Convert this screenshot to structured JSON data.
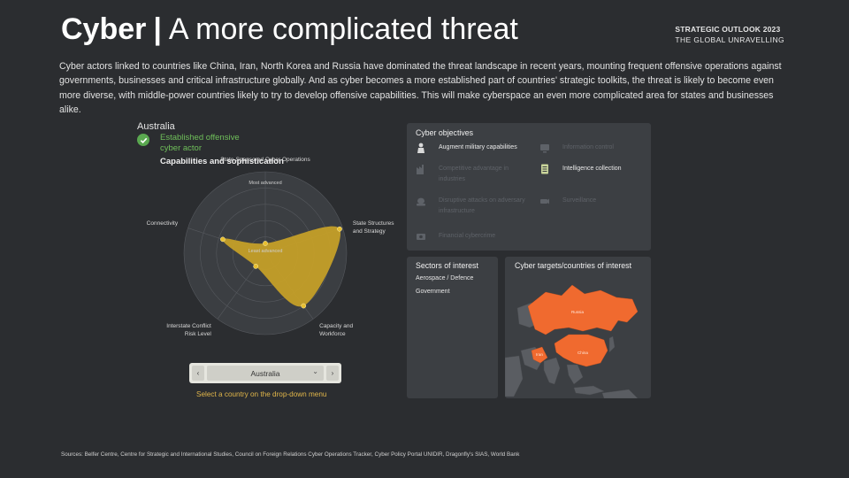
{
  "header": {
    "title_bold": "Cyber",
    "title_sep": "|",
    "title_rest": "A more complicated threat",
    "brand_line1": "STRATEGIC OUTLOOK 2023",
    "brand_line2": "THE GLOBAL UNRAVELLING"
  },
  "intro": "Cyber actors linked to countries like China, Iran, North Korea and Russia have dominated the threat landscape in recent years, mounting frequent offensive operations against governments, businesses and critical infrastructure globally. And as cyber becomes a more established part of countries' strategic toolkits, the threat is likely to become even more diverse, with middle-power countries likely to try to develop offensive capabilities. This will make cyberspace an even more complicated area for states and businesses alike.",
  "country": {
    "name": "Australia",
    "status": "Established offensive cyber actor",
    "status_color": "#6fbf5a"
  },
  "radar": {
    "title": "Capabilities and sophistication",
    "ring_labels": {
      "outer": "Most advanced",
      "inner": "Least advanced"
    },
    "axes": [
      {
        "label_lines": [
          "State-Sponsored Cyber Operations"
        ],
        "value": 0.12
      },
      {
        "label_lines": [
          "State Structures",
          "and Strategy"
        ],
        "value": 0.96
      },
      {
        "label_lines": [
          "Capacity and",
          "Workforce"
        ],
        "value": 0.8
      },
      {
        "label_lines": [
          "Interstate Conflict",
          "Risk Level"
        ],
        "value": 0.2
      },
      {
        "label_lines": [
          "Connectivity"
        ],
        "value": 0.55
      }
    ],
    "fill_color": "#c9a227",
    "point_color": "#e8bf2f"
  },
  "selector": {
    "prev_icon": "chevron-left-icon",
    "prev_glyph": "‹",
    "next_icon": "chevron-right-icon",
    "next_glyph": "›",
    "selected": "Australia",
    "dropdown_glyph": "⌄",
    "hint": "Select a country on the drop-down menu"
  },
  "objectives": {
    "title": "Cyber objectives",
    "items": [
      {
        "label": "Augment military capabilities",
        "active": true,
        "icon": "soldier-icon"
      },
      {
        "label": "Information control",
        "active": false,
        "icon": "tv-icon"
      },
      {
        "label": "Competitive advantage in industries",
        "active": false,
        "icon": "factory-icon"
      },
      {
        "label": "Intelligence collection",
        "active": true,
        "icon": "document-icon"
      },
      {
        "label": "Disruptive attacks on adversary infrastructure",
        "active": false,
        "icon": "tank-icon"
      },
      {
        "label": "Surveillance",
        "active": false,
        "icon": "camera-icon"
      },
      {
        "label": "Financial cybercrime",
        "active": false,
        "icon": "money-icon"
      }
    ]
  },
  "sectors": {
    "title": "Sectors of interest",
    "items": [
      "Aerospace / Defence",
      "Government"
    ]
  },
  "targets": {
    "title": "Cyber targets/countries of interest",
    "countries": [
      "Russia",
      "Iran",
      "China"
    ],
    "highlight_color": "#f06a2f"
  },
  "sources": "Sources: Belfer Centre, Centre for Strategic and International Studies, Council on Foreign Relations Cyber Operations Tracker, Cyber Policy Portal UNIDIR, Dragonfly's SIAS, World Bank"
}
